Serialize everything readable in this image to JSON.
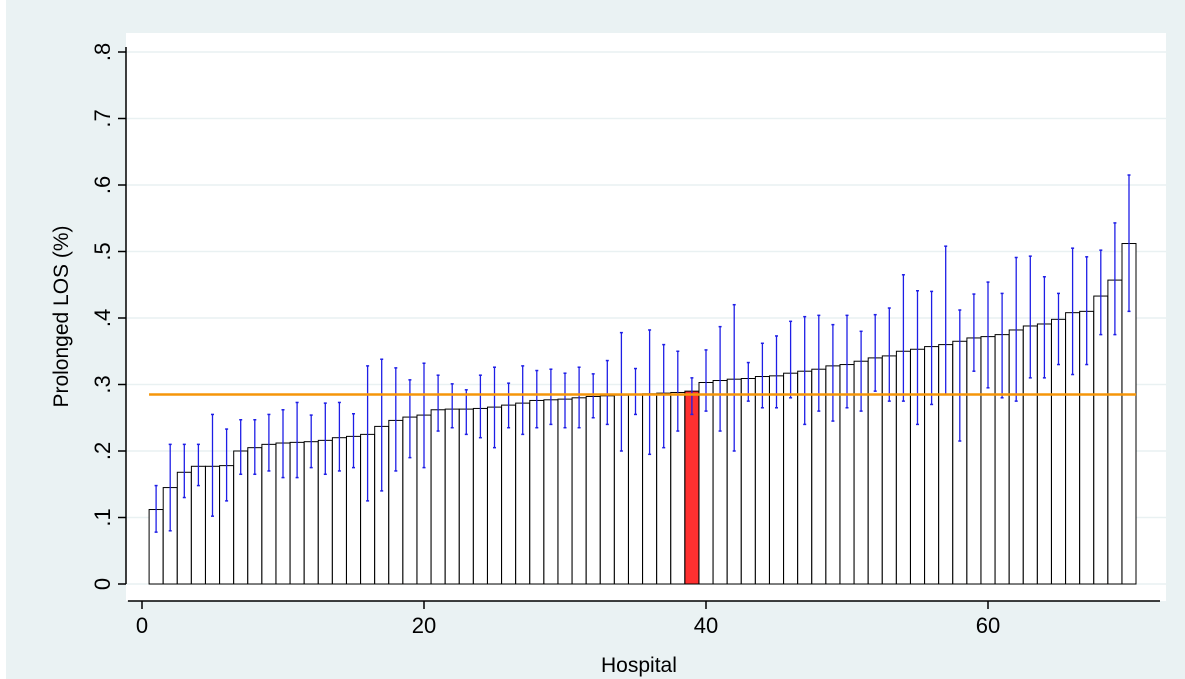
{
  "chart_data": {
    "type": "bar",
    "title": "",
    "xlabel": "Hospital",
    "ylabel": "Prolonged LOS (%)",
    "xlim": [
      -1,
      72
    ],
    "ylim": [
      0,
      0.82
    ],
    "xticks": [
      0,
      20,
      40,
      60
    ],
    "xtick_labels": [
      "0",
      "20",
      "40",
      "60"
    ],
    "yticks": [
      0,
      0.1,
      0.2,
      0.3,
      0.4,
      0.5,
      0.6,
      0.7,
      0.8
    ],
    "ytick_labels": [
      "0",
      ".1",
      ".2",
      ".3",
      ".4",
      ".5",
      ".6",
      ".7",
      ".8"
    ],
    "grid": true,
    "reference_line": 0.285,
    "highlighted_hospital": 39,
    "x": [
      1,
      2,
      3,
      4,
      5,
      6,
      7,
      8,
      9,
      10,
      11,
      12,
      13,
      14,
      15,
      16,
      17,
      18,
      19,
      20,
      21,
      22,
      23,
      24,
      25,
      26,
      27,
      28,
      29,
      30,
      31,
      32,
      33,
      34,
      35,
      36,
      37,
      38,
      39,
      40,
      41,
      42,
      43,
      44,
      45,
      46,
      47,
      48,
      49,
      50,
      51,
      52,
      53,
      54,
      55,
      56,
      57,
      58,
      59,
      60,
      61,
      62,
      63,
      64,
      65,
      66,
      67,
      68,
      69,
      70
    ],
    "values": [
      0.112,
      0.145,
      0.168,
      0.177,
      0.177,
      0.178,
      0.2,
      0.205,
      0.21,
      0.212,
      0.213,
      0.214,
      0.216,
      0.22,
      0.222,
      0.225,
      0.237,
      0.246,
      0.251,
      0.254,
      0.262,
      0.263,
      0.263,
      0.264,
      0.266,
      0.269,
      0.272,
      0.276,
      0.277,
      0.278,
      0.28,
      0.282,
      0.283,
      0.284,
      0.285,
      0.286,
      0.287,
      0.288,
      0.29,
      0.303,
      0.306,
      0.308,
      0.309,
      0.312,
      0.313,
      0.317,
      0.32,
      0.323,
      0.328,
      0.33,
      0.335,
      0.34,
      0.343,
      0.35,
      0.353,
      0.357,
      0.36,
      0.365,
      0.37,
      0.372,
      0.375,
      0.382,
      0.388,
      0.391,
      0.398,
      0.408,
      0.41,
      0.433,
      0.457,
      0.512
    ],
    "ci_lower": [
      0.078,
      0.08,
      0.13,
      0.148,
      0.102,
      0.125,
      0.165,
      0.165,
      0.17,
      0.16,
      0.16,
      0.175,
      0.165,
      0.17,
      0.175,
      0.125,
      0.14,
      0.17,
      0.19,
      0.175,
      0.23,
      0.235,
      0.225,
      0.22,
      0.205,
      0.235,
      0.225,
      0.235,
      0.24,
      0.235,
      0.235,
      0.25,
      0.24,
      0.2,
      0.255,
      0.195,
      0.205,
      0.23,
      0.255,
      0.26,
      0.23,
      0.2,
      0.275,
      0.265,
      0.265,
      0.28,
      0.24,
      0.26,
      0.245,
      0.265,
      0.26,
      0.29,
      0.275,
      0.275,
      0.24,
      0.27,
      0.285,
      0.215,
      0.32,
      0.295,
      0.28,
      0.275,
      0.31,
      0.31,
      0.33,
      0.315,
      0.33,
      0.375,
      0.375,
      0.41
    ],
    "ci_upper": [
      0.148,
      0.21,
      0.21,
      0.21,
      0.255,
      0.233,
      0.247,
      0.247,
      0.255,
      0.262,
      0.273,
      0.254,
      0.272,
      0.273,
      0.256,
      0.328,
      0.338,
      0.325,
      0.307,
      0.332,
      0.314,
      0.301,
      0.292,
      0.314,
      0.326,
      0.302,
      0.328,
      0.321,
      0.323,
      0.317,
      0.326,
      0.316,
      0.336,
      0.378,
      0.324,
      0.382,
      0.36,
      0.35,
      0.31,
      0.352,
      0.387,
      0.42,
      0.333,
      0.362,
      0.373,
      0.395,
      0.402,
      0.404,
      0.39,
      0.404,
      0.38,
      0.405,
      0.415,
      0.465,
      0.441,
      0.44,
      0.508,
      0.412,
      0.436,
      0.454,
      0.437,
      0.491,
      0.493,
      0.462,
      0.437,
      0.505,
      0.492,
      0.502,
      0.543,
      0.615
    ]
  },
  "colors": {
    "background": "#eaf2f3",
    "plot_background": "#ffffff",
    "gridline": "#e9f1f2",
    "bar_fill": "#ffffff",
    "bar_edge": "#000000",
    "highlight_fill": "#ff3030",
    "error_bar": "#1e1ee6",
    "reference_line": "#f5960a",
    "axis": "#000000"
  }
}
